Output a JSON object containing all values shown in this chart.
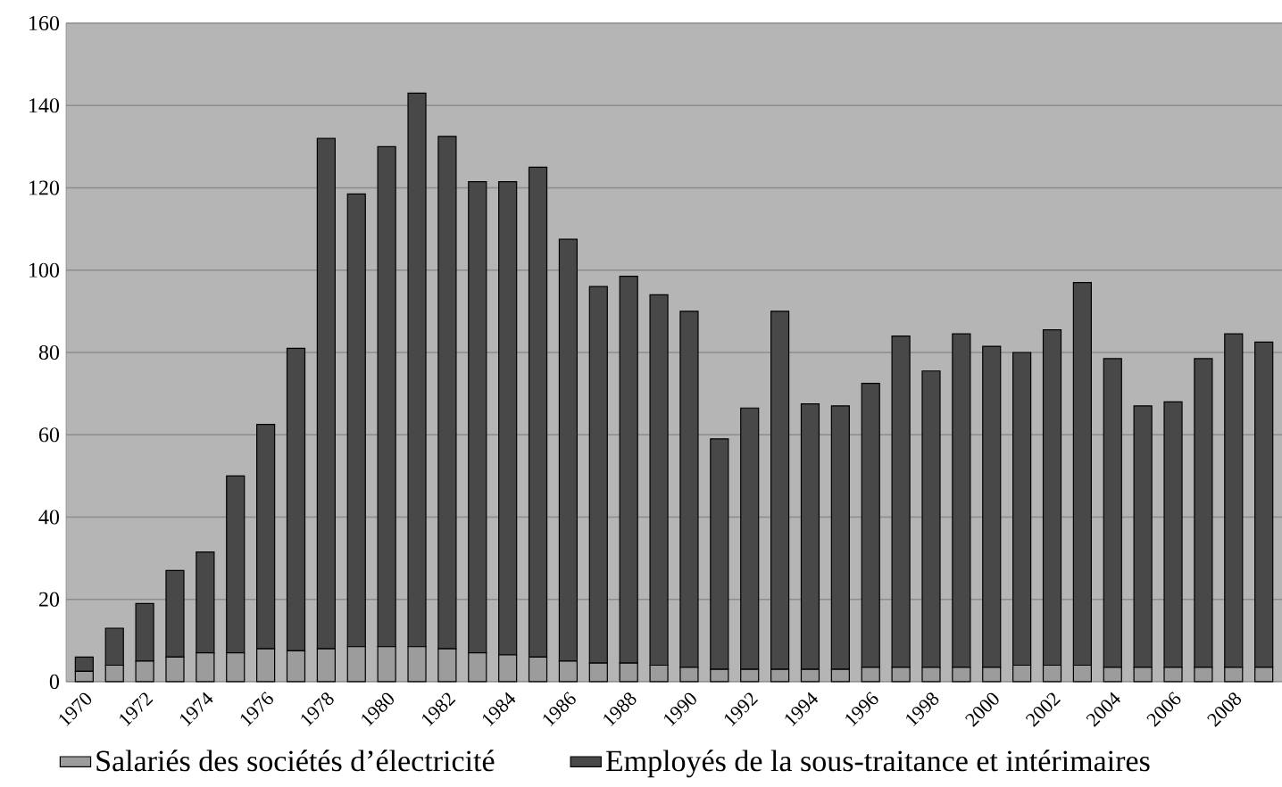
{
  "chart_data": {
    "type": "bar",
    "stacked": true,
    "categories": [
      "1970",
      null,
      "1972",
      null,
      "1974",
      null,
      "1976",
      null,
      "1978",
      null,
      "1980",
      null,
      "1982",
      null,
      "1984",
      null,
      "1986",
      null,
      "1988",
      null,
      "1990",
      null,
      "1992",
      null,
      "1994",
      null,
      "1996",
      null,
      "1998",
      null,
      "2000",
      null,
      "2002",
      null,
      "2004",
      null,
      "2006",
      null,
      "2008",
      null
    ],
    "series": [
      {
        "name": "Salariés des sociétés d’électricité",
        "color": "#9c9c9c",
        "values": [
          2.5,
          4,
          5,
          6,
          7,
          7,
          8,
          7.5,
          8,
          8.5,
          8.5,
          8.5,
          8,
          7,
          6.5,
          6,
          5,
          4.5,
          4.5,
          4,
          3.5,
          3,
          3,
          3,
          3,
          3,
          3.5,
          3.5,
          3.5,
          3.5,
          3.5,
          4,
          4,
          4,
          3.5,
          3.5,
          3.5,
          3.5,
          3.5,
          3.5
        ]
      },
      {
        "name": "Employés de la sous-traitance et intérimaires",
        "color": "#484848",
        "values": [
          3.5,
          9,
          14,
          21,
          24.5,
          43,
          54.5,
          73.5,
          124,
          110,
          121.5,
          134.5,
          124.5,
          114.5,
          115,
          119,
          102.5,
          91.5,
          94,
          90,
          86.5,
          56,
          63.5,
          87,
          64.5,
          64,
          69,
          80.5,
          72,
          81,
          78,
          76,
          81.5,
          93,
          75,
          63.5,
          64.5,
          75,
          81,
          79
        ]
      }
    ],
    "ylim": [
      0,
      160
    ],
    "yticks": [
      0,
      20,
      40,
      60,
      80,
      100,
      120,
      140,
      160
    ],
    "grid": "y",
    "legend": "bottom"
  }
}
